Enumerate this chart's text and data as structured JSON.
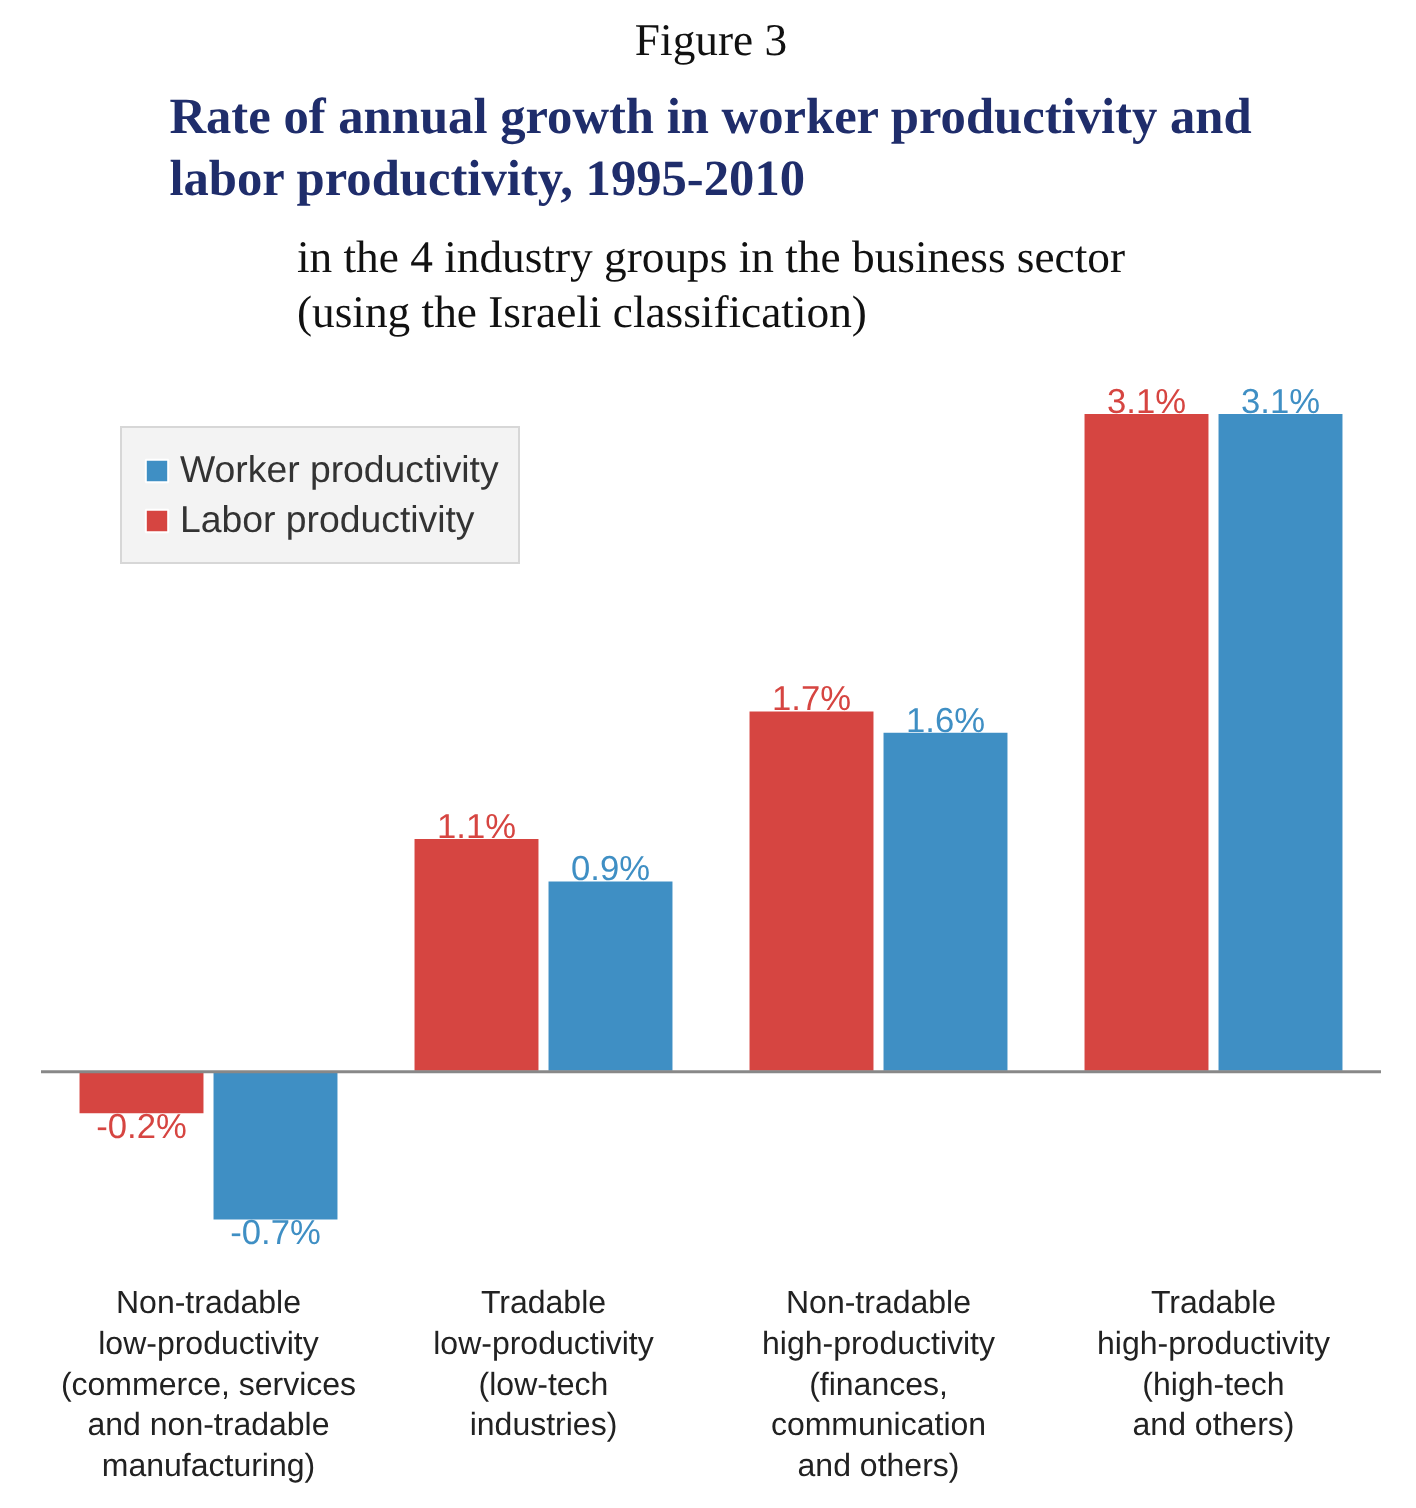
{
  "chart_data": {
    "type": "bar",
    "title": "Rate of annual growth in worker productivity and\nlabor productivity, 1995-2010",
    "subtitle": "in the 4 industry groups in the business sector\n(using the Israeli classification)",
    "annotations": [
      "Figure 3"
    ],
    "categories": [
      "Non-tradable\nlow-productivity\n(commerce, services\nand non-tradable\nmanufacturing)",
      "Tradable\nlow-productivity\n(low-tech\nindustries)",
      "Non-tradable\nhigh-productivity\n(finances,\ncommunication\nand others)",
      "Tradable\nhigh-productivity\n(high-tech\nand others)"
    ],
    "series": [
      {
        "name": "Labor productivity",
        "color": "#d64541",
        "values": [
          -0.2,
          1.1,
          1.7,
          3.1
        ],
        "value_labels": [
          "-0.2%",
          "1.1%",
          "1.7%",
          "3.1%"
        ]
      },
      {
        "name": "Worker productivity",
        "color": "#3f8fc4",
        "values": [
          -0.7,
          0.9,
          1.6,
          3.1
        ],
        "value_labels": [
          "-0.7%",
          "0.9%",
          "1.6%",
          "3.1%"
        ]
      }
    ],
    "legend": "top left",
    "grid": false
  }
}
